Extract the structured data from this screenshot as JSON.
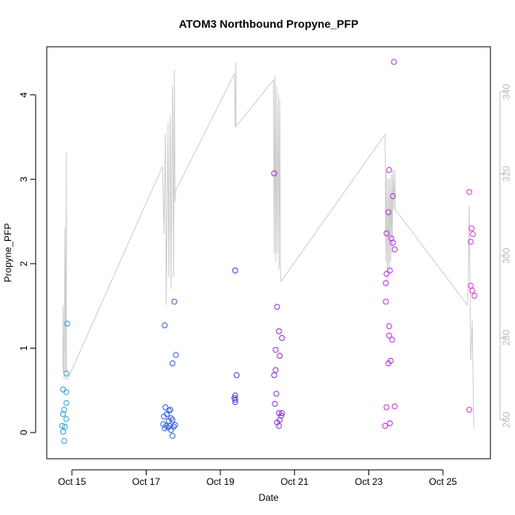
{
  "chart_data": {
    "type": "scatter",
    "title": "ATOM3 Northbound Propyne_PFP",
    "xlabel": "Date",
    "ylabel": "Propyne_PFP",
    "xlim": [
      14.32,
      26.28
    ],
    "ylim": [
      -0.31,
      4.57
    ],
    "y2lim": [
      250.5,
      351.0
    ],
    "xticks": [
      {
        "value": 15,
        "label": "Oct 15"
      },
      {
        "value": 17,
        "label": "Oct 17"
      },
      {
        "value": 19,
        "label": "Oct 19"
      },
      {
        "value": 21,
        "label": "Oct 21"
      },
      {
        "value": 23,
        "label": "Oct 23"
      },
      {
        "value": 25,
        "label": "Oct 25"
      }
    ],
    "yticks": [
      0,
      1,
      2,
      3,
      4
    ],
    "y2ticks": [
      260,
      280,
      300,
      320,
      340
    ],
    "y2color": "#bbbbbb",
    "series": [
      {
        "type": "line",
        "axis": "y2",
        "color": "#cccccc",
        "x": [
          14.76,
          14.76,
          14.79,
          14.81,
          14.83,
          14.85,
          14.85,
          14.89,
          17.44,
          17.48,
          17.52,
          17.54,
          17.59,
          17.61,
          17.65,
          17.67,
          17.71,
          17.74,
          17.76,
          17.78,
          17.8,
          19.38,
          19.4,
          19.42,
          19.42,
          20.43,
          20.45,
          20.47,
          20.49,
          20.51,
          20.53,
          20.56,
          20.58,
          20.6,
          20.62,
          20.64,
          23.44,
          23.46,
          23.48,
          23.5,
          23.53,
          23.55,
          23.57,
          23.59,
          23.61,
          23.63,
          23.65,
          23.68,
          23.7,
          23.72,
          25.66,
          25.68,
          25.71,
          25.75,
          25.79,
          25.83
        ],
        "values": [
          271.6,
          288.0,
          269.7,
          307.0,
          271.6,
          325.3,
          270.0,
          270.0,
          321.8,
          305.4,
          330.0,
          288.0,
          332.5,
          294.8,
          334.4,
          291.9,
          341.5,
          294.8,
          345.4,
          313.1,
          316.0,
          344.4,
          331.5,
          347.3,
          331.5,
          342.9,
          300.6,
          343.9,
          298.6,
          341.5,
          300.6,
          339.6,
          296.7,
          338.3,
          295.7,
          293.8,
          329.6,
          298.6,
          320.9,
          293.8,
          318.9,
          295.7,
          318.9,
          298.6,
          319.9,
          300.6,
          320.9,
          311.2,
          320.9,
          311.2,
          288.0,
          292.9,
          312.2,
          274.5,
          284.2,
          258.1
        ]
      },
      {
        "type": "scatter",
        "color": "#29a3dc",
        "x": [
          14.76,
          14.85,
          14.85,
          14.87,
          14.85,
          14.79,
          14.76,
          14.85,
          14.74,
          14.81,
          14.76,
          14.79
        ],
        "values": [
          0.51,
          0.48,
          0.7,
          1.29,
          0.35,
          0.27,
          0.22,
          0.16,
          0.08,
          0.07,
          0.01,
          -0.1
        ]
      },
      {
        "type": "scatter",
        "color": "#2e5ee8",
        "x": [
          17.5,
          17.76,
          17.8,
          17.71,
          17.52,
          17.61,
          17.65,
          17.48,
          17.56,
          17.67,
          17.71,
          17.46,
          17.54,
          17.59,
          17.63,
          17.74,
          17.5,
          17.67,
          17.71,
          17.78,
          17.61
        ],
        "values": [
          1.27,
          1.55,
          0.92,
          0.82,
          0.3,
          0.26,
          0.27,
          0.19,
          0.22,
          0.17,
          0.15,
          0.1,
          0.08,
          0.06,
          0.08,
          0.07,
          0.05,
          0.03,
          -0.04,
          0.09,
          0.14
        ]
      },
      {
        "type": "scatter",
        "color": "#4a3ce8",
        "x": [
          19.4,
          19.44,
          19.4,
          19.38,
          19.4,
          19.4
        ],
        "values": [
          1.92,
          0.68,
          0.44,
          0.41,
          0.39,
          0.36
        ]
      },
      {
        "type": "scatter",
        "color": "#8a2be2",
        "x": [
          20.45,
          20.53,
          20.58,
          20.66,
          20.49,
          20.6,
          20.49,
          20.45,
          20.51,
          20.47,
          20.58,
          20.66,
          20.64,
          20.6,
          20.53,
          20.58
        ],
        "values": [
          3.07,
          1.49,
          1.2,
          1.12,
          0.98,
          0.91,
          0.74,
          0.68,
          0.46,
          0.34,
          0.23,
          0.23,
          0.2,
          0.15,
          0.12,
          0.08
        ]
      },
      {
        "type": "scatter",
        "color": "#c02ae8",
        "x": [
          23.68,
          23.55,
          23.65,
          23.53,
          23.48,
          23.61,
          23.65,
          23.7,
          23.57,
          23.48,
          23.46,
          23.46,
          23.55,
          23.55,
          23.63,
          23.59,
          23.53,
          23.48,
          23.7,
          23.57,
          23.44
        ],
        "values": [
          4.39,
          3.11,
          2.8,
          2.61,
          2.36,
          2.3,
          2.25,
          2.17,
          1.92,
          1.88,
          1.77,
          1.55,
          1.26,
          1.15,
          1.1,
          0.85,
          0.82,
          0.3,
          0.31,
          0.11,
          0.08
        ]
      },
      {
        "type": "scatter",
        "color": "#e030e0",
        "x": [
          25.71,
          25.77,
          25.81,
          25.75,
          25.75,
          25.79,
          25.85,
          25.71
        ],
        "values": [
          2.85,
          2.42,
          2.35,
          2.26,
          1.74,
          1.68,
          1.62,
          0.27
        ]
      }
    ]
  }
}
